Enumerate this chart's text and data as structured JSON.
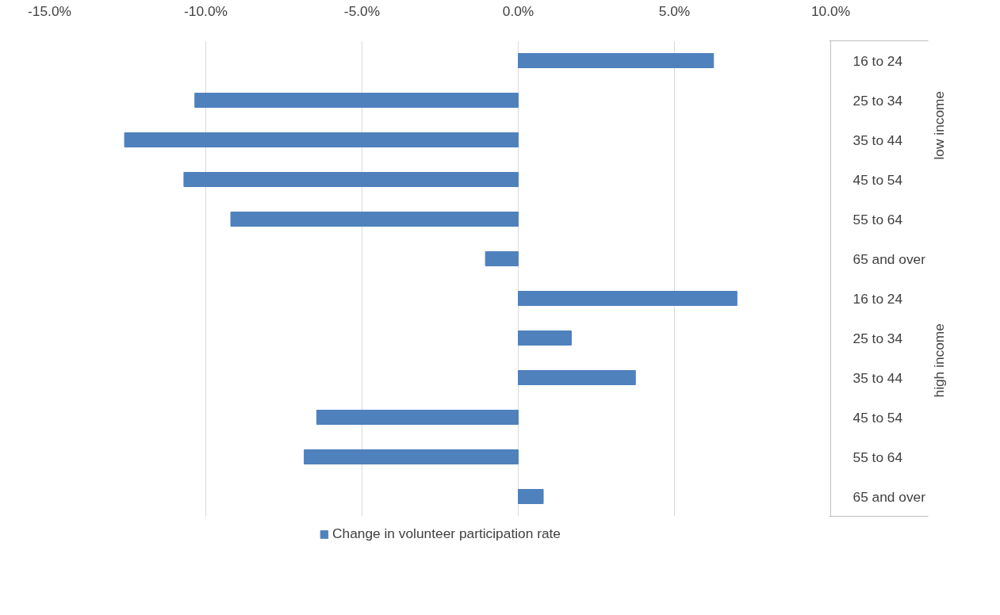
{
  "chart_data": {
    "type": "bar",
    "orientation": "horizontal",
    "categories": [
      "16 to 24",
      "25 to 34",
      "35 to 44",
      "45 to 54",
      "55 to 64",
      "65 and over",
      "16 to 24",
      "25 to 34",
      "35 to 44",
      "45 to 54",
      "55 to 64",
      "65 and over"
    ],
    "series": [
      {
        "name": "Change in volunteer participation rate",
        "color": "#4f81bd",
        "values": [
          6.25,
          -10.35,
          -12.6,
          -10.7,
          -9.2,
          -1.05,
          7.0,
          1.7,
          3.75,
          -6.45,
          -6.85,
          0.8
        ]
      }
    ],
    "xlim": [
      -15,
      10
    ],
    "xticks": [
      {
        "value": -15,
        "label": "-15.0%"
      },
      {
        "value": -10,
        "label": "-10.0%"
      },
      {
        "value": -5,
        "label": "-5.0%"
      },
      {
        "value": 0,
        "label": "0.0%"
      },
      {
        "value": 5,
        "label": "5.0%"
      },
      {
        "value": 10,
        "label": "10.0%"
      }
    ],
    "grid": "x",
    "legend": "bottom",
    "annotations": [
      "low income",
      "high income"
    ]
  }
}
